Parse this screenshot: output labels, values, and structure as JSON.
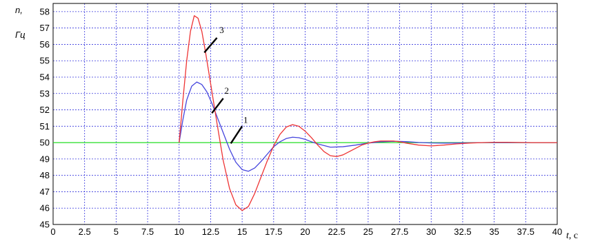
{
  "chart_data": {
    "type": "line",
    "ylabel_line1": "n,",
    "ylabel_line2": "Гц",
    "xlabel_var": "t",
    "xlabel_unit": ", c",
    "xlim": [
      0,
      40
    ],
    "ylim": [
      45,
      58.5
    ],
    "grid": true,
    "x_ticks": [
      "0",
      "2.5",
      "5",
      "7.5",
      "10",
      "12.5",
      "15",
      "17.5",
      "20",
      "22.5",
      "25",
      "27.5",
      "30",
      "32.5",
      "35",
      "37.5",
      "40"
    ],
    "y_ticks": [
      "45",
      "46",
      "47",
      "48",
      "49",
      "50",
      "51",
      "52",
      "53",
      "54",
      "55",
      "56",
      "57",
      "58"
    ],
    "series": [
      {
        "label": "1",
        "color": "#22dd22",
        "x": [
          0,
          10,
          16,
          17.5,
          20,
          22.5,
          25,
          27.5,
          30,
          32.5,
          35,
          37.5,
          40
        ],
        "y": [
          50,
          50,
          50,
          50,
          50,
          50,
          50,
          50,
          50,
          50,
          50,
          50,
          50
        ]
      },
      {
        "label": "2",
        "color": "#4444dd",
        "x": [
          10,
          10.3,
          10.6,
          11,
          11.4,
          11.8,
          12.2,
          12.6,
          13,
          13.5,
          14,
          14.5,
          15,
          15.5,
          16,
          16.5,
          17,
          17.5,
          18,
          18.5,
          19,
          19.5,
          20,
          20.5,
          21,
          22,
          23,
          24,
          25,
          26,
          27,
          28,
          29,
          30,
          31,
          32,
          33,
          34,
          35,
          36,
          37,
          38,
          39,
          40
        ],
        "y": [
          50,
          51.4,
          52.6,
          53.45,
          53.7,
          53.55,
          53.1,
          52.4,
          51.6,
          50.6,
          49.6,
          48.8,
          48.35,
          48.25,
          48.45,
          48.85,
          49.3,
          49.75,
          50.05,
          50.25,
          50.33,
          50.3,
          50.2,
          50.05,
          49.92,
          49.72,
          49.75,
          49.85,
          49.97,
          50.05,
          50.08,
          50.06,
          50.01,
          49.98,
          49.97,
          49.98,
          49.99,
          50.0,
          50.0,
          50.0,
          50.0,
          50.0,
          50.0,
          50.0
        ]
      },
      {
        "label": "3",
        "color": "#ee3333",
        "x": [
          10,
          10.3,
          10.6,
          10.9,
          11.2,
          11.5,
          11.8,
          12.1,
          12.5,
          13,
          13.5,
          14,
          14.5,
          15,
          15.5,
          16,
          16.5,
          17,
          17.5,
          18,
          18.5,
          19,
          19.5,
          20,
          20.5,
          21,
          21.5,
          22,
          22.5,
          23,
          23.5,
          24,
          24.5,
          25,
          25.5,
          26,
          27,
          27.5,
          28,
          29,
          30,
          31,
          32,
          33,
          34,
          35,
          36,
          37,
          38,
          39,
          40
        ],
        "y": [
          50,
          52.6,
          55.0,
          56.8,
          57.75,
          57.6,
          56.8,
          55.5,
          53.6,
          51.2,
          48.9,
          47.2,
          46.2,
          45.85,
          46.1,
          46.9,
          47.9,
          48.9,
          49.8,
          50.5,
          50.95,
          51.1,
          51.0,
          50.7,
          50.3,
          49.85,
          49.45,
          49.2,
          49.15,
          49.25,
          49.45,
          49.65,
          49.85,
          49.97,
          50.05,
          50.1,
          50.1,
          50.05,
          49.97,
          49.85,
          49.8,
          49.85,
          49.92,
          49.97,
          50.0,
          50.02,
          50.02,
          50.01,
          50.0,
          50.0,
          50.0
        ]
      }
    ],
    "annotations": [
      {
        "label": "1",
        "line": [
          [
            14.1,
            49.95
          ],
          [
            15.0,
            51.0
          ]
        ],
        "text_at": [
          15.1,
          51.2
        ]
      },
      {
        "label": "2",
        "line": [
          [
            12.6,
            51.8
          ],
          [
            13.5,
            52.7
          ]
        ],
        "text_at": [
          13.6,
          53.0
        ]
      },
      {
        "label": "3",
        "line": [
          [
            12.0,
            55.5
          ],
          [
            13.0,
            56.4
          ]
        ],
        "text_at": [
          13.2,
          56.7
        ]
      }
    ]
  }
}
